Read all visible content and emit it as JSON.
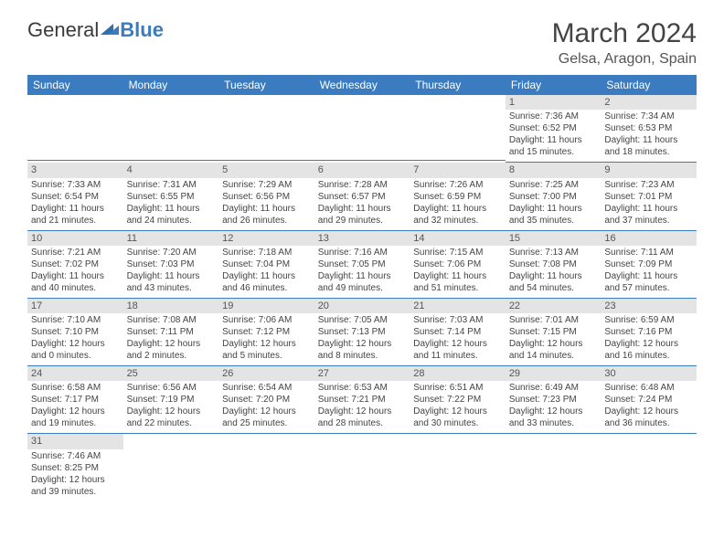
{
  "logo": {
    "part1": "General",
    "part2": "Blue"
  },
  "header": {
    "month_title": "March 2024",
    "location": "Gelsa, Aragon, Spain"
  },
  "colors": {
    "header_bg": "#3b7bbf",
    "header_fg": "#ffffff",
    "daynum_bg": "#e4e4e4",
    "text": "#444444",
    "row_border": "#3b7bbf"
  },
  "typography": {
    "title_fontsize": 30,
    "location_fontsize": 16,
    "dayheader_fontsize": 12,
    "cell_fontsize": 10
  },
  "day_names": [
    "Sunday",
    "Monday",
    "Tuesday",
    "Wednesday",
    "Thursday",
    "Friday",
    "Saturday"
  ],
  "weeks": [
    [
      null,
      null,
      null,
      null,
      null,
      {
        "n": "1",
        "sunrise": "Sunrise: 7:36 AM",
        "sunset": "Sunset: 6:52 PM",
        "daylight": "Daylight: 11 hours and 15 minutes."
      },
      {
        "n": "2",
        "sunrise": "Sunrise: 7:34 AM",
        "sunset": "Sunset: 6:53 PM",
        "daylight": "Daylight: 11 hours and 18 minutes."
      }
    ],
    [
      {
        "n": "3",
        "sunrise": "Sunrise: 7:33 AM",
        "sunset": "Sunset: 6:54 PM",
        "daylight": "Daylight: 11 hours and 21 minutes."
      },
      {
        "n": "4",
        "sunrise": "Sunrise: 7:31 AM",
        "sunset": "Sunset: 6:55 PM",
        "daylight": "Daylight: 11 hours and 24 minutes."
      },
      {
        "n": "5",
        "sunrise": "Sunrise: 7:29 AM",
        "sunset": "Sunset: 6:56 PM",
        "daylight": "Daylight: 11 hours and 26 minutes."
      },
      {
        "n": "6",
        "sunrise": "Sunrise: 7:28 AM",
        "sunset": "Sunset: 6:57 PM",
        "daylight": "Daylight: 11 hours and 29 minutes."
      },
      {
        "n": "7",
        "sunrise": "Sunrise: 7:26 AM",
        "sunset": "Sunset: 6:59 PM",
        "daylight": "Daylight: 11 hours and 32 minutes."
      },
      {
        "n": "8",
        "sunrise": "Sunrise: 7:25 AM",
        "sunset": "Sunset: 7:00 PM",
        "daylight": "Daylight: 11 hours and 35 minutes."
      },
      {
        "n": "9",
        "sunrise": "Sunrise: 7:23 AM",
        "sunset": "Sunset: 7:01 PM",
        "daylight": "Daylight: 11 hours and 37 minutes."
      }
    ],
    [
      {
        "n": "10",
        "sunrise": "Sunrise: 7:21 AM",
        "sunset": "Sunset: 7:02 PM",
        "daylight": "Daylight: 11 hours and 40 minutes."
      },
      {
        "n": "11",
        "sunrise": "Sunrise: 7:20 AM",
        "sunset": "Sunset: 7:03 PM",
        "daylight": "Daylight: 11 hours and 43 minutes."
      },
      {
        "n": "12",
        "sunrise": "Sunrise: 7:18 AM",
        "sunset": "Sunset: 7:04 PM",
        "daylight": "Daylight: 11 hours and 46 minutes."
      },
      {
        "n": "13",
        "sunrise": "Sunrise: 7:16 AM",
        "sunset": "Sunset: 7:05 PM",
        "daylight": "Daylight: 11 hours and 49 minutes."
      },
      {
        "n": "14",
        "sunrise": "Sunrise: 7:15 AM",
        "sunset": "Sunset: 7:06 PM",
        "daylight": "Daylight: 11 hours and 51 minutes."
      },
      {
        "n": "15",
        "sunrise": "Sunrise: 7:13 AM",
        "sunset": "Sunset: 7:08 PM",
        "daylight": "Daylight: 11 hours and 54 minutes."
      },
      {
        "n": "16",
        "sunrise": "Sunrise: 7:11 AM",
        "sunset": "Sunset: 7:09 PM",
        "daylight": "Daylight: 11 hours and 57 minutes."
      }
    ],
    [
      {
        "n": "17",
        "sunrise": "Sunrise: 7:10 AM",
        "sunset": "Sunset: 7:10 PM",
        "daylight": "Daylight: 12 hours and 0 minutes."
      },
      {
        "n": "18",
        "sunrise": "Sunrise: 7:08 AM",
        "sunset": "Sunset: 7:11 PM",
        "daylight": "Daylight: 12 hours and 2 minutes."
      },
      {
        "n": "19",
        "sunrise": "Sunrise: 7:06 AM",
        "sunset": "Sunset: 7:12 PM",
        "daylight": "Daylight: 12 hours and 5 minutes."
      },
      {
        "n": "20",
        "sunrise": "Sunrise: 7:05 AM",
        "sunset": "Sunset: 7:13 PM",
        "daylight": "Daylight: 12 hours and 8 minutes."
      },
      {
        "n": "21",
        "sunrise": "Sunrise: 7:03 AM",
        "sunset": "Sunset: 7:14 PM",
        "daylight": "Daylight: 12 hours and 11 minutes."
      },
      {
        "n": "22",
        "sunrise": "Sunrise: 7:01 AM",
        "sunset": "Sunset: 7:15 PM",
        "daylight": "Daylight: 12 hours and 14 minutes."
      },
      {
        "n": "23",
        "sunrise": "Sunrise: 6:59 AM",
        "sunset": "Sunset: 7:16 PM",
        "daylight": "Daylight: 12 hours and 16 minutes."
      }
    ],
    [
      {
        "n": "24",
        "sunrise": "Sunrise: 6:58 AM",
        "sunset": "Sunset: 7:17 PM",
        "daylight": "Daylight: 12 hours and 19 minutes."
      },
      {
        "n": "25",
        "sunrise": "Sunrise: 6:56 AM",
        "sunset": "Sunset: 7:19 PM",
        "daylight": "Daylight: 12 hours and 22 minutes."
      },
      {
        "n": "26",
        "sunrise": "Sunrise: 6:54 AM",
        "sunset": "Sunset: 7:20 PM",
        "daylight": "Daylight: 12 hours and 25 minutes."
      },
      {
        "n": "27",
        "sunrise": "Sunrise: 6:53 AM",
        "sunset": "Sunset: 7:21 PM",
        "daylight": "Daylight: 12 hours and 28 minutes."
      },
      {
        "n": "28",
        "sunrise": "Sunrise: 6:51 AM",
        "sunset": "Sunset: 7:22 PM",
        "daylight": "Daylight: 12 hours and 30 minutes."
      },
      {
        "n": "29",
        "sunrise": "Sunrise: 6:49 AM",
        "sunset": "Sunset: 7:23 PM",
        "daylight": "Daylight: 12 hours and 33 minutes."
      },
      {
        "n": "30",
        "sunrise": "Sunrise: 6:48 AM",
        "sunset": "Sunset: 7:24 PM",
        "daylight": "Daylight: 12 hours and 36 minutes."
      }
    ],
    [
      {
        "n": "31",
        "sunrise": "Sunrise: 7:46 AM",
        "sunset": "Sunset: 8:25 PM",
        "daylight": "Daylight: 12 hours and 39 minutes."
      },
      null,
      null,
      null,
      null,
      null,
      null
    ]
  ]
}
